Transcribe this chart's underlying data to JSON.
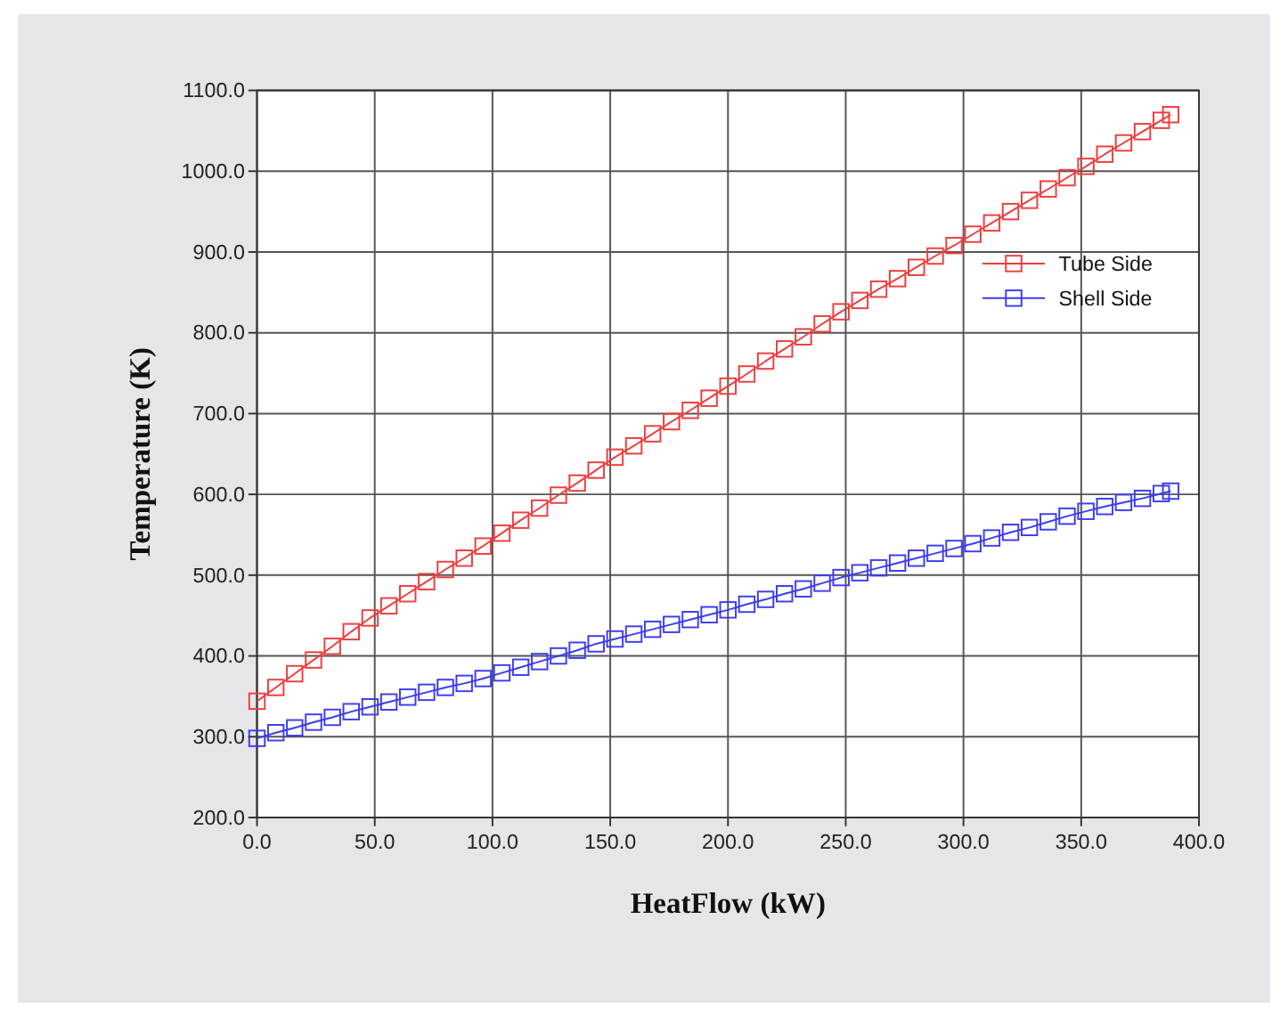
{
  "chart_data": {
    "type": "line",
    "xlabel": "HeatFlow (kW)",
    "ylabel": "Temperature (K)",
    "x": [
      0,
      8,
      16,
      24,
      32,
      40,
      48,
      56,
      64,
      72,
      80,
      88,
      96,
      104,
      112,
      120,
      128,
      136,
      144,
      152,
      160,
      168,
      176,
      184,
      192,
      200,
      208,
      216,
      224,
      232,
      240,
      248,
      256,
      264,
      272,
      280,
      288,
      296,
      304,
      312,
      320,
      328,
      336,
      344,
      352,
      360,
      368,
      376,
      384,
      388
    ],
    "series": [
      {
        "name": "Tube Side",
        "color": "#f03c3c",
        "values": [
          344,
          361,
          378,
          395,
          412,
          430,
          447,
          462,
          477,
          492,
          507,
          521,
          536,
          552,
          568,
          583,
          599,
          614,
          630,
          646,
          660,
          675,
          690,
          704,
          719,
          734,
          749,
          765,
          780,
          795,
          811,
          826,
          840,
          854,
          867,
          881,
          895,
          908,
          922,
          936,
          950,
          964,
          978,
          992,
          1006,
          1021,
          1035,
          1049,
          1063,
          1070
        ]
      },
      {
        "name": "Shell Side",
        "color": "#3c3cf0",
        "values": [
          298,
          305,
          311,
          318,
          324,
          331,
          337,
          343,
          349,
          355,
          361,
          366,
          372,
          379,
          386,
          393,
          400,
          407,
          415,
          421,
          427,
          433,
          439,
          445,
          451,
          457,
          464,
          470,
          477,
          483,
          490,
          497,
          503,
          509,
          515,
          521,
          527,
          533,
          539,
          546,
          553,
          559,
          566,
          573,
          579,
          585,
          590,
          595,
          601,
          604
        ]
      }
    ],
    "xlim": [
      0,
      400
    ],
    "xticks": [
      {
        "value": 0,
        "label": "0.0"
      },
      {
        "value": 50,
        "label": "50.0"
      },
      {
        "value": 100,
        "label": "100.0"
      },
      {
        "value": 150,
        "label": "150.0"
      },
      {
        "value": 200,
        "label": "200.0"
      },
      {
        "value": 250,
        "label": "250.0"
      },
      {
        "value": 300,
        "label": "300.0"
      },
      {
        "value": 350,
        "label": "350.0"
      },
      {
        "value": 400,
        "label": "400.0"
      }
    ],
    "ylim": [
      200,
      1100
    ],
    "yticks": [
      {
        "value": 200,
        "label": "200.0"
      },
      {
        "value": 300,
        "label": "300.0"
      },
      {
        "value": 400,
        "label": "400.0"
      },
      {
        "value": 500,
        "label": "500.0"
      },
      {
        "value": 600,
        "label": "600.0"
      },
      {
        "value": 700,
        "label": "700.0"
      },
      {
        "value": 800,
        "label": "800.0"
      },
      {
        "value": 900,
        "label": "900.0"
      },
      {
        "value": 1000,
        "label": "1000.0"
      },
      {
        "value": 1100,
        "label": "1100.0"
      }
    ],
    "grid": true,
    "legend": "top right",
    "marker": "square",
    "line_style": "solid"
  }
}
